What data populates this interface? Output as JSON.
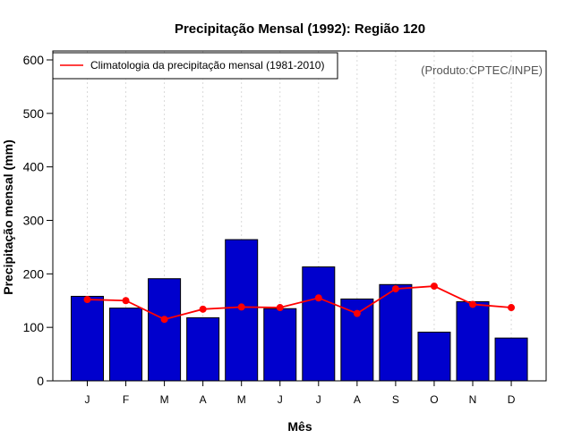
{
  "chart_data": {
    "type": "bar",
    "title": "Precipitação Mensal (1992): Região 120",
    "xlabel": "Mês",
    "ylabel": "Precipitação mensal (mm)",
    "ylim": [
      0,
      600
    ],
    "yticks": [
      0,
      100,
      200,
      300,
      400,
      500,
      600
    ],
    "categories": [
      "J",
      "F",
      "M",
      "A",
      "M",
      "J",
      "J",
      "A",
      "S",
      "O",
      "N",
      "D"
    ],
    "series": [
      {
        "name": "Precipitação mensal (1992)",
        "type": "bar",
        "color": "#0000CD",
        "values": [
          158,
          136,
          191,
          118,
          264,
          135,
          213,
          153,
          180,
          91,
          148,
          80
        ]
      },
      {
        "name": "Climatologia da precipitação mensal (1981-2010)",
        "type": "line",
        "color": "#FF0000",
        "values": [
          152,
          150,
          115,
          134,
          138,
          137,
          155,
          126,
          172,
          177,
          143,
          137
        ]
      }
    ],
    "legend": {
      "position": "top-left",
      "label": "Climatologia da precipitação mensal (1981-2010)"
    },
    "credit": "(Produto:CPTEC/INPE)",
    "grid": "vertical dotted"
  }
}
